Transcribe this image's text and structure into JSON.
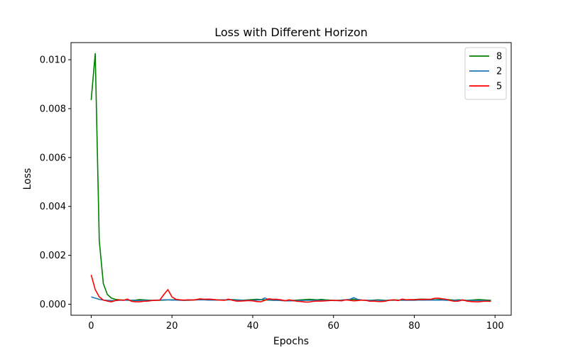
{
  "chart_data": {
    "type": "line",
    "title": "Loss with Different Horizon",
    "xlabel": "Epochs",
    "ylabel": "Loss",
    "xlim": [
      -5,
      104
    ],
    "ylim": [
      -0.00045,
      0.0107
    ],
    "xticks": [
      0,
      20,
      40,
      60,
      80,
      100
    ],
    "xtick_labels": [
      "0",
      "20",
      "40",
      "60",
      "80",
      "100"
    ],
    "yticks": [
      0.0,
      0.002,
      0.004,
      0.006,
      0.008,
      0.01
    ],
    "ytick_labels": [
      "0.000",
      "0.002",
      "0.004",
      "0.006",
      "0.008",
      "0.010"
    ],
    "grid": false,
    "legend": "top-right",
    "series": [
      {
        "name": "8",
        "color": "#008000",
        "x": [
          0,
          1,
          2,
          3,
          4,
          5,
          6,
          7,
          8,
          9,
          10,
          11,
          12,
          13,
          14,
          15,
          16,
          17,
          18,
          19,
          20,
          21,
          22,
          23,
          24,
          25,
          26,
          27,
          28,
          29,
          30,
          31,
          32,
          33,
          34,
          35,
          36,
          37,
          38,
          39,
          40,
          41,
          42,
          43,
          44,
          45,
          46,
          47,
          48,
          49,
          50,
          51,
          52,
          53,
          54,
          55,
          56,
          57,
          58,
          59,
          60,
          61,
          62,
          63,
          64,
          65,
          66,
          67,
          68,
          69,
          70,
          71,
          72,
          73,
          74,
          75,
          76,
          77,
          78,
          79,
          80,
          81,
          82,
          83,
          84,
          85,
          86,
          87,
          88,
          89,
          90,
          91,
          92,
          93,
          94,
          95,
          96,
          97,
          98,
          99
        ],
        "values": [
          0.00835,
          0.01025,
          0.0026,
          0.00085,
          0.0004,
          0.00025,
          0.0002,
          0.00018,
          0.00017,
          0.00017,
          0.00016,
          0.00017,
          0.00019,
          0.00018,
          0.00017,
          0.00016,
          0.00016,
          0.00016,
          0.00017,
          0.00018,
          0.00018,
          0.00018,
          0.00017,
          0.00016,
          0.00016,
          0.00017,
          0.00018,
          0.00019,
          0.0002,
          0.0002,
          0.00019,
          0.00018,
          0.00017,
          0.00017,
          0.00018,
          0.00019,
          0.00018,
          0.00017,
          0.00017,
          0.00018,
          0.00019,
          0.0002,
          0.00019,
          0.00018,
          0.00017,
          0.00016,
          0.00016,
          0.00016,
          0.00015,
          0.00015,
          0.00016,
          0.00017,
          0.00018,
          0.00019,
          0.0002,
          0.00019,
          0.00018,
          0.0002,
          0.00018,
          0.00017,
          0.00016,
          0.00016,
          0.00017,
          0.00018,
          0.00019,
          0.0002,
          0.00018,
          0.00017,
          0.00016,
          0.00016,
          0.00017,
          0.00018,
          0.00017,
          0.00016,
          0.00017,
          0.00018,
          0.00017,
          0.00016,
          0.00017,
          0.00018,
          0.00019,
          0.0002,
          0.00021,
          0.0002,
          0.00019,
          0.00018,
          0.00019,
          0.0002,
          0.00019,
          0.00018,
          0.00017,
          0.00018,
          0.00017,
          0.00016,
          0.00017,
          0.00018,
          0.00019,
          0.00018,
          0.00017,
          0.00016
        ]
      },
      {
        "name": "2",
        "color": "#1f77b4",
        "x": [
          0,
          1,
          2,
          3,
          4,
          5,
          6,
          7,
          8,
          9,
          10,
          11,
          12,
          13,
          14,
          15,
          16,
          17,
          18,
          19,
          20,
          21,
          22,
          23,
          24,
          25,
          26,
          27,
          28,
          29,
          30,
          31,
          32,
          33,
          34,
          35,
          36,
          37,
          38,
          39,
          40,
          41,
          42,
          43,
          44,
          45,
          46,
          47,
          48,
          49,
          50,
          51,
          52,
          53,
          54,
          55,
          56,
          57,
          58,
          59,
          60,
          61,
          62,
          63,
          64,
          65,
          66,
          67,
          68,
          69,
          70,
          71,
          72,
          73,
          74,
          75,
          76,
          77,
          78,
          79,
          80,
          81,
          82,
          83,
          84,
          85,
          86,
          87,
          88,
          89,
          90,
          91,
          92,
          93,
          94,
          95,
          96,
          97,
          98,
          99
        ],
        "values": [
          0.0003,
          0.00025,
          0.0002,
          0.00017,
          0.00016,
          0.00015,
          0.00015,
          0.00016,
          0.00017,
          0.00016,
          0.00016,
          0.00015,
          0.00015,
          0.00016,
          0.00016,
          0.00016,
          0.00017,
          0.00017,
          0.00018,
          0.00018,
          0.00017,
          0.00017,
          0.00016,
          0.00016,
          0.00017,
          0.00018,
          0.00018,
          0.00018,
          0.00018,
          0.00017,
          0.00017,
          0.00017,
          0.00018,
          0.00018,
          0.00018,
          0.00018,
          0.00017,
          0.00017,
          0.00016,
          0.00016,
          0.00016,
          0.00017,
          0.00018,
          0.00026,
          0.00018,
          0.00016,
          0.00016,
          0.00015,
          0.00014,
          0.00014,
          0.00014,
          0.00015,
          0.00015,
          0.00016,
          0.00016,
          0.00016,
          0.00016,
          0.00016,
          0.00016,
          0.00016,
          0.00015,
          0.00015,
          0.00017,
          0.00018,
          0.0002,
          0.00027,
          0.0002,
          0.00017,
          0.00016,
          0.00016,
          0.00016,
          0.00016,
          0.00015,
          0.00015,
          0.00016,
          0.00016,
          0.00017,
          0.00017,
          0.00016,
          0.00016,
          0.00016,
          0.00017,
          0.00017,
          0.00017,
          0.00017,
          0.00017,
          0.00017,
          0.00017,
          0.00016,
          0.00016,
          0.00016,
          0.00017,
          0.00016,
          0.00015,
          0.00015,
          0.00015,
          0.00015,
          0.00015,
          0.00014,
          0.00013
        ]
      },
      {
        "name": "5",
        "color": "#ff0000",
        "x": [
          0,
          1,
          2,
          3,
          4,
          5,
          6,
          7,
          8,
          9,
          10,
          11,
          12,
          13,
          14,
          15,
          16,
          17,
          18,
          19,
          20,
          21,
          22,
          23,
          24,
          25,
          26,
          27,
          28,
          29,
          30,
          31,
          32,
          33,
          34,
          35,
          36,
          37,
          38,
          39,
          40,
          41,
          42,
          43,
          44,
          45,
          46,
          47,
          48,
          49,
          50,
          51,
          52,
          53,
          54,
          55,
          56,
          57,
          58,
          59,
          60,
          61,
          62,
          63,
          64,
          65,
          66,
          67,
          68,
          69,
          70,
          71,
          72,
          73,
          74,
          75,
          76,
          77,
          78,
          79,
          80,
          81,
          82,
          83,
          84,
          85,
          86,
          87,
          88,
          89,
          90,
          91,
          92,
          93,
          94,
          95,
          96,
          97,
          98,
          99
        ],
        "values": [
          0.0012,
          0.0006,
          0.0003,
          0.00017,
          0.00013,
          0.0001,
          0.00015,
          0.00018,
          0.00016,
          0.00021,
          0.00012,
          0.0001,
          0.0001,
          0.00012,
          0.00013,
          0.00015,
          0.00016,
          0.00017,
          0.0004,
          0.0006,
          0.0003,
          0.0002,
          0.00018,
          0.00017,
          0.00018,
          0.00017,
          0.00019,
          0.00022,
          0.0002,
          0.00021,
          0.0002,
          0.00018,
          0.00017,
          0.00016,
          0.00021,
          0.00016,
          0.00013,
          0.00013,
          0.00014,
          0.00015,
          0.00014,
          0.00011,
          0.0001,
          0.00016,
          0.00022,
          0.0002,
          0.0002,
          0.00018,
          0.00014,
          0.00018,
          0.00015,
          0.00012,
          0.00011,
          9e-05,
          9e-05,
          0.00012,
          0.00013,
          0.00013,
          0.00014,
          0.00015,
          0.00016,
          0.00015,
          0.00014,
          0.00018,
          0.00016,
          0.00014,
          0.00015,
          0.00017,
          0.00016,
          0.00012,
          0.00013,
          0.00011,
          0.00011,
          0.00013,
          0.00017,
          0.00018,
          0.00015,
          0.00021,
          0.00018,
          0.00019,
          0.00018,
          0.0002,
          0.00019,
          0.0002,
          0.0002,
          0.00024,
          0.00025,
          0.00022,
          0.0002,
          0.00015,
          0.00012,
          0.00013,
          0.00018,
          0.00013,
          0.00011,
          0.0001,
          0.0001,
          0.00012,
          0.00012,
          0.00012
        ]
      }
    ]
  }
}
